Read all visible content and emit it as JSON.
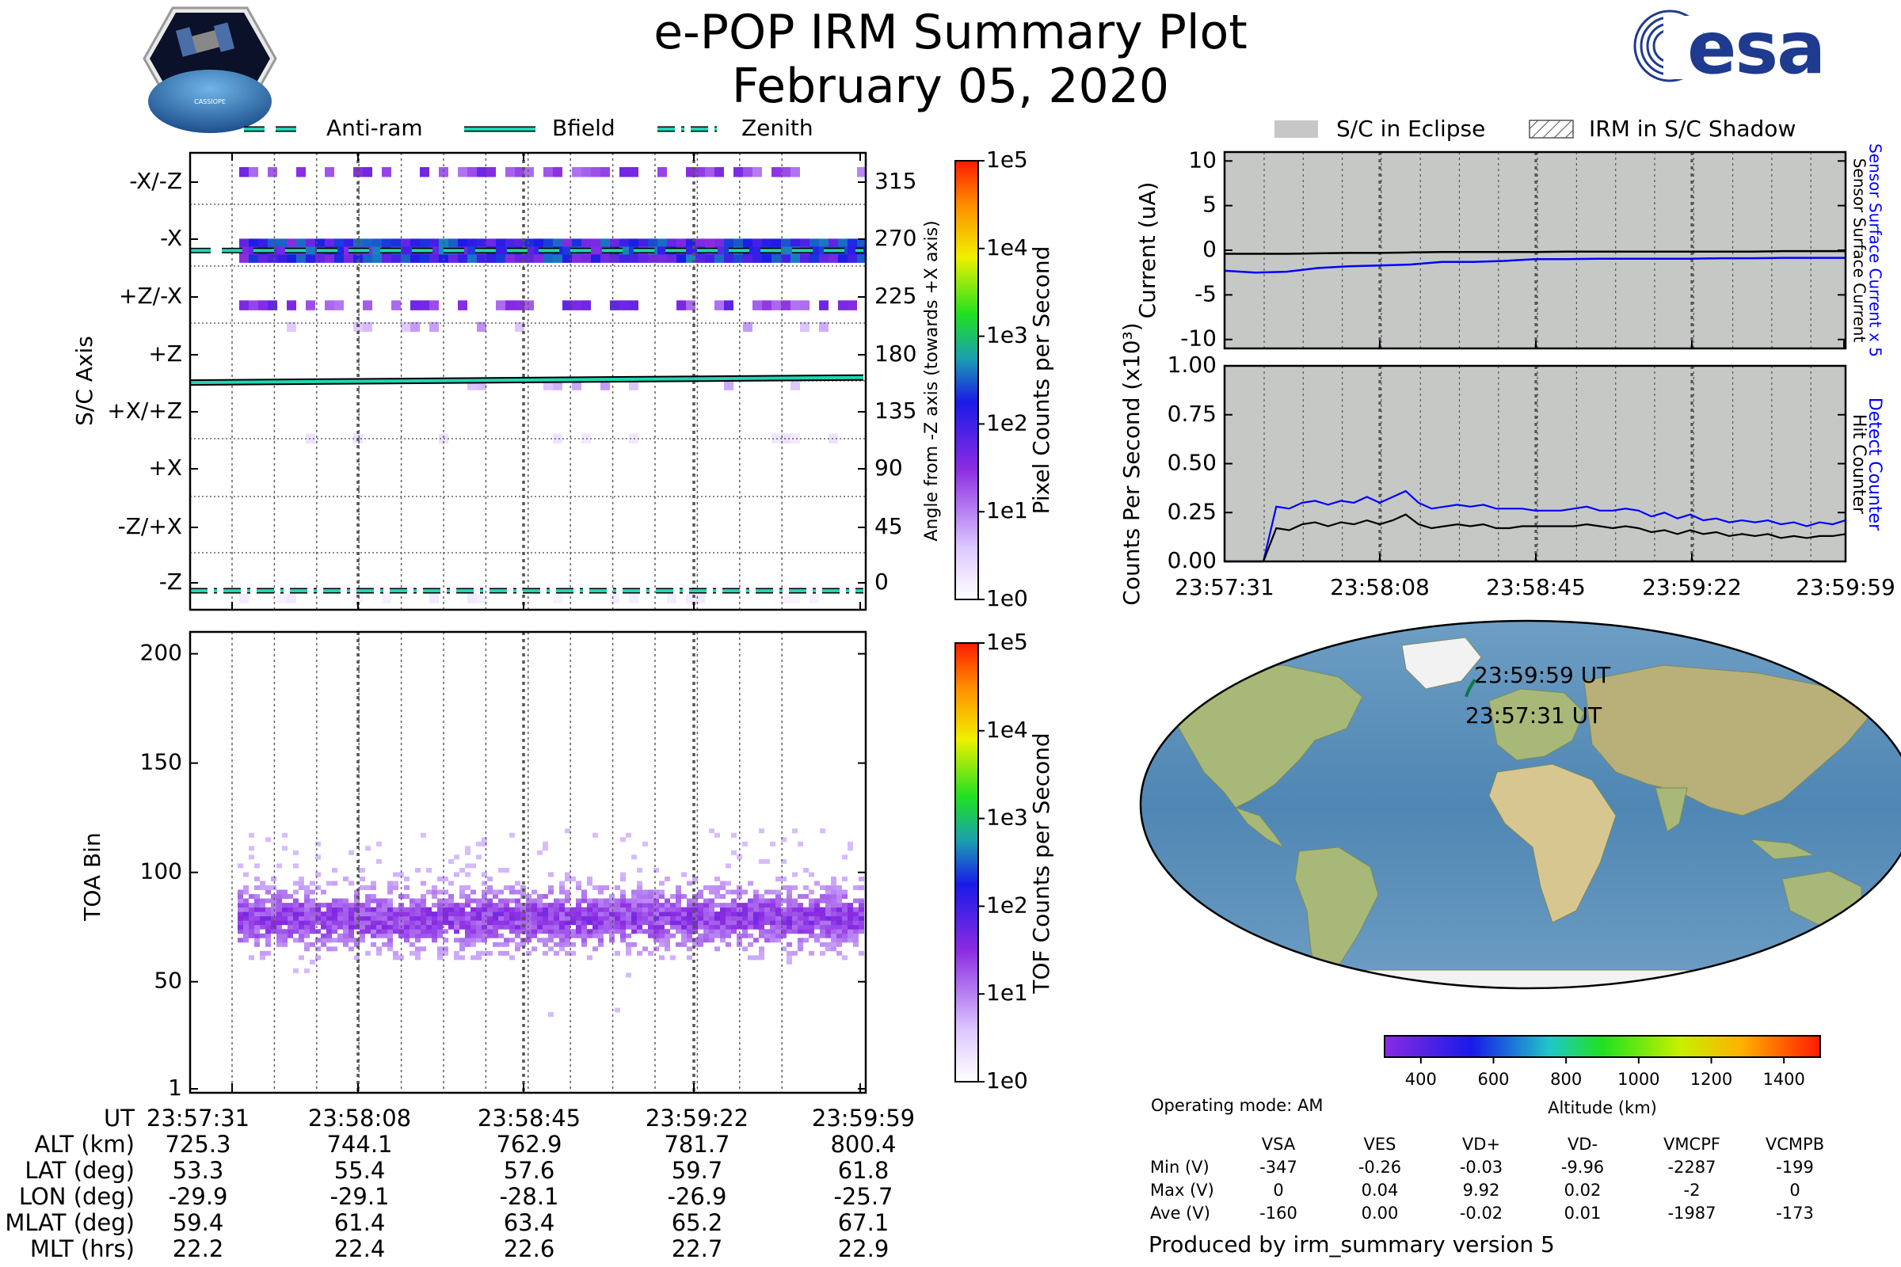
{
  "header": {
    "title": "e-POP IRM Summary Plot",
    "date": "February 05, 2020",
    "mission_badge_text": "CASSIOPE",
    "agency_logo_text": "esa"
  },
  "colors": {
    "anti_ram": "#1fd6b4",
    "bfield": "#1fd6b4",
    "zenith": "#1fd6b4",
    "eclipse": "#c6c8c6",
    "sensor_surface_current_x5": "#0000ff",
    "detect_counter": "#0000ff",
    "hit_counter": "#000000",
    "track": "#0a7a4a"
  },
  "chart_data": [
    {
      "type": "heatmap",
      "id": "sc_axis_panel",
      "legend": [
        {
          "label": "Anti-ram",
          "style": "dashed"
        },
        {
          "label": "Bfield",
          "style": "solid"
        },
        {
          "label": "Zenith",
          "style": "dashdot"
        }
      ],
      "ylabel_left": "S/C Axis",
      "ylabel_right": "Angle from -Z axis (towards +X axis)",
      "y_ticks_left": [
        "-X/-Z",
        "-X",
        "+Z/-X",
        "+Z",
        "+X/+Z",
        "+X",
        "-Z/+X",
        "-Z"
      ],
      "y_ticks_right": [
        "315",
        "270",
        "225",
        "180",
        "135",
        "90",
        "45",
        "0"
      ],
      "ylim_deg": [
        -15,
        345
      ],
      "x_ticks": [
        "23:57:31",
        "23:58:08",
        "23:58:45",
        "23:59:22",
        "23:59:59"
      ],
      "bands_deg": [
        {
          "center": 330,
          "intensity": 1.5
        },
        {
          "center": 268,
          "intensity": 2.3
        },
        {
          "center": 225,
          "intensity": 1.6
        },
        {
          "center": 208,
          "intensity": 0.8
        },
        {
          "center": 162,
          "intensity": 0.8
        },
        {
          "center": 120,
          "intensity": 0.3
        },
        {
          "center": -6,
          "intensity": 0.2
        }
      ],
      "anti_ram_deg": 268,
      "bfield_deg": [
        164,
        168
      ],
      "zenith_deg": 0,
      "colorbar": {
        "label": "Pixel Counts per Second",
        "scale": "log",
        "ticks": [
          "1e0",
          "1e1",
          "1e2",
          "1e3",
          "1e4",
          "1e5"
        ]
      }
    },
    {
      "type": "heatmap",
      "id": "toa_panel",
      "ylabel": "TOA Bin",
      "ylim": [
        1,
        210
      ],
      "y_ticks": [
        "1",
        "50",
        "100",
        "150",
        "200"
      ],
      "x_ticks": [
        "23:57:31",
        "23:58:08",
        "23:58:45",
        "23:59:22",
        "23:59:59"
      ],
      "band_center_bin": 79,
      "band_halfwidth_bins": 14,
      "colorbar": {
        "label": "TOF Counts per Second",
        "scale": "log",
        "ticks": [
          "1e0",
          "1e1",
          "1e2",
          "1e3",
          "1e4",
          "1e5"
        ]
      }
    },
    {
      "type": "line",
      "id": "current_panel",
      "legend": [
        {
          "label": "S/C in Eclipse",
          "style": "solid-fill"
        },
        {
          "label": "IRM in S/C Shadow",
          "style": "hatched"
        }
      ],
      "ylabel": "Current (uA)",
      "ylim": [
        -11,
        11
      ],
      "y_ticks": [
        "10",
        "5",
        "0",
        "-5",
        "-10"
      ],
      "right_labels": [
        {
          "text": "Sensor Surface Current x 5",
          "color": "#0000ff"
        },
        {
          "text": "Sensor Surface Current",
          "color": "#000000"
        }
      ],
      "series": [
        {
          "name": "Sensor Surface Current",
          "color": "#000000",
          "values": [
            -0.4,
            -0.4,
            -0.4,
            -0.35,
            -0.3,
            -0.3,
            -0.25,
            -0.2,
            -0.2,
            -0.2,
            -0.2,
            -0.15,
            -0.15,
            -0.15,
            -0.15,
            -0.15,
            -0.15,
            -0.15,
            -0.1,
            -0.1,
            -0.1
          ]
        },
        {
          "name": "Sensor Surface Current x 5",
          "color": "#0000ff",
          "values": [
            -2.3,
            -2.5,
            -2.4,
            -2.0,
            -1.8,
            -1.7,
            -1.6,
            -1.3,
            -1.3,
            -1.2,
            -1.0,
            -1.0,
            -0.95,
            -0.95,
            -0.95,
            -0.95,
            -0.9,
            -0.9,
            -0.85,
            -0.85,
            -0.85
          ]
        }
      ],
      "eclipse": true
    },
    {
      "type": "line",
      "id": "counts_panel",
      "ylabel": "Counts Per Second (x10³)",
      "ylim": [
        0,
        1
      ],
      "y_ticks": [
        "1.00",
        "0.75",
        "0.50",
        "0.25",
        "0.00"
      ],
      "x_ticks": [
        "23:57:31",
        "23:58:08",
        "23:58:45",
        "23:59:22",
        "23:59:59"
      ],
      "right_labels": [
        {
          "text": "Detect Counter",
          "color": "#0000ff"
        },
        {
          "text": "Hit Counter",
          "color": "#000000"
        }
      ],
      "series": [
        {
          "name": "Detect Counter",
          "color": "#0000ff",
          "values": [
            0,
            0,
            0,
            0,
            0.28,
            0.27,
            0.3,
            0.31,
            0.29,
            0.31,
            0.3,
            0.33,
            0.3,
            0.33,
            0.36,
            0.3,
            0.27,
            0.28,
            0.29,
            0.28,
            0.29,
            0.27,
            0.27,
            0.27,
            0.26,
            0.26,
            0.26,
            0.27,
            0.28,
            0.26,
            0.26,
            0.27,
            0.26,
            0.23,
            0.25,
            0.22,
            0.24,
            0.21,
            0.22,
            0.2,
            0.21,
            0.2,
            0.21,
            0.19,
            0.2,
            0.18,
            0.2,
            0.19,
            0.21
          ]
        },
        {
          "name": "Hit Counter",
          "color": "#000000",
          "values": [
            0,
            0,
            0,
            0,
            0.17,
            0.16,
            0.19,
            0.2,
            0.18,
            0.2,
            0.19,
            0.21,
            0.19,
            0.21,
            0.24,
            0.19,
            0.17,
            0.18,
            0.19,
            0.18,
            0.19,
            0.17,
            0.17,
            0.18,
            0.18,
            0.18,
            0.18,
            0.18,
            0.19,
            0.18,
            0.17,
            0.18,
            0.17,
            0.15,
            0.16,
            0.14,
            0.16,
            0.14,
            0.15,
            0.13,
            0.14,
            0.13,
            0.14,
            0.12,
            0.13,
            0.12,
            0.13,
            0.13,
            0.14
          ]
        }
      ],
      "eclipse": true
    },
    {
      "type": "scatter",
      "id": "ground_track_map",
      "track": {
        "lat": [
          53.3,
          55.4,
          57.6,
          59.7,
          61.8
        ],
        "lon": [
          -29.9,
          -29.1,
          -28.1,
          -26.9,
          -25.7
        ]
      },
      "start_label": "23:57:31 UT",
      "end_label": "23:59:59 UT",
      "colorbar": {
        "label": "Altitude (km)",
        "ticks": [
          "400",
          "600",
          "800",
          "1000",
          "1200",
          "1400"
        ],
        "range": [
          300,
          1500
        ]
      }
    }
  ],
  "ephemeris": {
    "labels": [
      "UT",
      "ALT (km)",
      "LAT (deg)",
      "LON (deg)",
      "MLAT (deg)",
      "MLT (hrs)"
    ],
    "columns": [
      {
        "ut": "23:57:31",
        "alt": "725.3",
        "lat": "53.3",
        "lon": "-29.9",
        "mlat": "59.4",
        "mlt": "22.2"
      },
      {
        "ut": "23:58:08",
        "alt": "744.1",
        "lat": "55.4",
        "lon": "-29.1",
        "mlat": "61.4",
        "mlt": "22.4"
      },
      {
        "ut": "23:58:45",
        "alt": "762.9",
        "lat": "57.6",
        "lon": "-28.1",
        "mlat": "63.4",
        "mlt": "22.6"
      },
      {
        "ut": "23:59:22",
        "alt": "781.7",
        "lat": "59.7",
        "lon": "-26.9",
        "mlat": "65.2",
        "mlt": "22.7"
      },
      {
        "ut": "23:59:59",
        "alt": "800.4",
        "lat": "61.8",
        "lon": "-25.7",
        "mlat": "67.1",
        "mlt": "22.9"
      }
    ]
  },
  "voltages": {
    "operating_mode": "Operating mode: AM",
    "headers": [
      "VSA",
      "VES",
      "VD+",
      "VD-",
      "VMCPF",
      "VCMPB"
    ],
    "rows": [
      {
        "label": "Min (V)",
        "values": [
          "-347",
          "-0.26",
          "-0.03",
          "-9.96",
          "-2287",
          "-199"
        ]
      },
      {
        "label": "Max (V)",
        "values": [
          "0",
          "0.04",
          "9.92",
          "0.02",
          "-2",
          "0"
        ]
      },
      {
        "label": "Ave (V)",
        "values": [
          "-160",
          "0.00",
          "-0.02",
          "0.01",
          "-1987",
          "-173"
        ]
      }
    ]
  },
  "footer": {
    "produced_by": "Produced by irm_summary version 5"
  }
}
